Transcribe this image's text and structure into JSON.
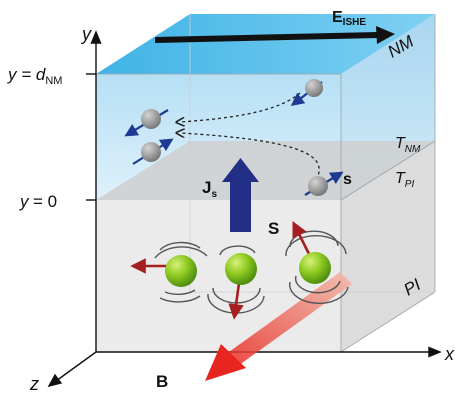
{
  "axes": {
    "y_label": "y",
    "x_label": "x",
    "z_label": "z",
    "y_top_label": "y = d",
    "y_top_sub": "NM",
    "y_zero_label": "y = 0"
  },
  "layers": {
    "nm_label": "NM",
    "pi_label": "PI",
    "t_nm": "T",
    "t_nm_sub": "NM",
    "t_pi": "T",
    "t_pi_sub": "PI"
  },
  "vectors": {
    "e_ishe": "E",
    "e_ishe_sub": "ISHE",
    "js": "J",
    "js_sub": "s",
    "s_small": "s",
    "s_big": "S",
    "b_field": "B"
  },
  "colors": {
    "nm_top": "#41b7e8",
    "nm_face": "#c7e6f7",
    "pi_face": "#e6e6e6",
    "interface": "#c4c4c4",
    "js_arrow": "#232f86",
    "magnon_sphere": "#7fc31c",
    "spin_arrow_red": "#a51e22",
    "b_arrow": "#e8261f",
    "electron": "#8a8a8a",
    "electron_spin": "#1f3a93"
  }
}
